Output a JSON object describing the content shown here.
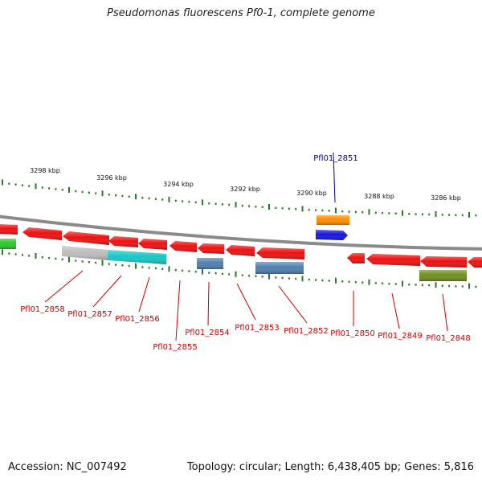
{
  "header": {
    "title": "Pseudomonas fluorescens Pf0-1, complete genome"
  },
  "footer": {
    "accession": "Accession: NC_007492",
    "summary": "Topology: circular; Length: 6,438,405 bp; Genes: 5,816"
  },
  "colors": {
    "backbone": "#8a8a8a",
    "tick": "#2a7a2a",
    "gene_red": "#ee1111",
    "label_red": "#cc0000",
    "label_blue": "#000099",
    "orange": "#ff8c00",
    "blue": "#1515e0",
    "steel": "#4f7fb0",
    "cyan": "#1ac6c6",
    "silver": "#bdbdbd",
    "green": "#28c828",
    "olive": "#6f8f1f"
  },
  "scale_labels": [
    "3298 kbp",
    "3296 kbp",
    "3294 kbp",
    "3292 kbp",
    "3290 kbp",
    "3288 kbp",
    "3286 kbp"
  ],
  "genes": [
    {
      "name": "Pfl01_2858",
      "color": "red"
    },
    {
      "name": "Pfl01_2857",
      "color": "red"
    },
    {
      "name": "Pfl01_2856",
      "color": "red"
    },
    {
      "name": "Pfl01_2855",
      "color": "red"
    },
    {
      "name": "Pfl01_2854",
      "color": "red"
    },
    {
      "name": "Pfl01_2853",
      "color": "red"
    },
    {
      "name": "Pfl01_2852",
      "color": "red"
    },
    {
      "name": "Pfl01_2851",
      "color": "blue"
    },
    {
      "name": "Pfl01_2850",
      "color": "red"
    },
    {
      "name": "Pfl01_2849",
      "color": "red"
    },
    {
      "name": "Pfl01_2848",
      "color": "red"
    }
  ]
}
